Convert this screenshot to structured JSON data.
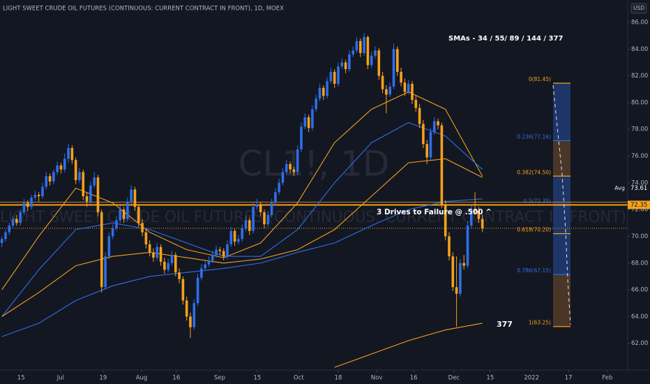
{
  "chart_data": {
    "type": "candlestick",
    "title": "LIGHT SWEET CRUDE OIL FUTURES (CONTINUOUS: CURRENT CONTRACT IN FRONT), 1D, MOEX",
    "currency": "USD",
    "watermark": {
      "symbol": "CL1!, 1D",
      "description": "LIGHT SWEET CRUDE OIL FUTURES (CONTINUOUS: CURRENT CONTRACT IN FRONT)"
    },
    "annotations": {
      "sma_list": "SMAs - 34 / 55/ 89 / 144 / 377",
      "setup": "3 Drives to Failure @ .500 ^",
      "sma_377": "377"
    },
    "up_color": "#2f6ee8",
    "down_color": "#f5a11c",
    "xlim": [
      -0.5,
      169.3
    ],
    "xticks": [
      {
        "value": 5.2,
        "label": "15"
      },
      {
        "value": 15.9,
        "label": "Jul"
      },
      {
        "value": 27.4,
        "label": "19"
      },
      {
        "value": 37.8,
        "label": "Aug"
      },
      {
        "value": 47.2,
        "label": "16"
      },
      {
        "value": 58.9,
        "label": "Sep"
      },
      {
        "value": 69.1,
        "label": "15"
      },
      {
        "value": 80.3,
        "label": "Oct"
      },
      {
        "value": 91.0,
        "label": "18"
      },
      {
        "value": 101.4,
        "label": "Nov"
      },
      {
        "value": 111.4,
        "label": "16"
      },
      {
        "value": 122.3,
        "label": "Dec"
      },
      {
        "value": 132.1,
        "label": "15"
      },
      {
        "value": 143.3,
        "label": "2022"
      },
      {
        "value": 153.3,
        "label": "17"
      },
      {
        "value": 163.8,
        "label": "Feb"
      }
    ],
    "ylim": [
      60,
      87.67
    ],
    "yticks": [
      {
        "value": 62,
        "label": "62.00"
      },
      {
        "value": 64,
        "label": "64.00"
      },
      {
        "value": 66,
        "label": "66.00"
      },
      {
        "value": 68,
        "label": "68.00"
      },
      {
        "value": 70,
        "label": "70.00"
      },
      {
        "value": 72,
        "label": "72.00"
      },
      {
        "value": 74,
        "label": "74.00"
      },
      {
        "value": 76,
        "label": "76.00"
      },
      {
        "value": 78,
        "label": "78.00"
      },
      {
        "value": 80,
        "label": "80.00"
      },
      {
        "value": 82,
        "label": "82.00"
      },
      {
        "value": 84,
        "label": "84.00"
      },
      {
        "value": 86,
        "label": "86.00"
      }
    ],
    "grid": false,
    "ohlc": [
      [
        69.5,
        70.0,
        69.2,
        69.8
      ],
      [
        69.8,
        70.5,
        69.6,
        70.3
      ],
      [
        70.3,
        71.0,
        70.1,
        70.8
      ],
      [
        70.8,
        71.5,
        70.6,
        71.3
      ],
      [
        71.3,
        71.6,
        70.8,
        71.0
      ],
      [
        71.0,
        72.0,
        70.8,
        71.8
      ],
      [
        71.8,
        72.8,
        71.6,
        72.5
      ],
      [
        72.5,
        72.7,
        71.9,
        72.2
      ],
      [
        72.2,
        73.1,
        72.0,
        72.9
      ],
      [
        72.9,
        73.4,
        72.7,
        73.1
      ],
      [
        73.1,
        73.3,
        72.6,
        73.0
      ],
      [
        73.0,
        74.0,
        72.8,
        73.7
      ],
      [
        73.7,
        74.8,
        73.5,
        74.5
      ],
      [
        74.5,
        74.7,
        73.8,
        74.1
      ],
      [
        74.1,
        75.0,
        73.9,
        74.8
      ],
      [
        74.8,
        75.6,
        74.6,
        75.3
      ],
      [
        75.3,
        75.5,
        74.7,
        75.0
      ],
      [
        75.0,
        76.2,
        74.8,
        75.8
      ],
      [
        75.8,
        76.9,
        75.5,
        76.6
      ],
      [
        76.6,
        76.8,
        75.4,
        75.7
      ],
      [
        75.7,
        75.9,
        73.9,
        74.2
      ],
      [
        74.2,
        75.1,
        74.0,
        74.8
      ],
      [
        74.8,
        75.0,
        72.7,
        73.0
      ],
      [
        73.0,
        73.3,
        72.2,
        72.6
      ],
      [
        72.6,
        74.1,
        72.4,
        73.8
      ],
      [
        73.8,
        74.8,
        73.6,
        74.4
      ],
      [
        74.4,
        74.6,
        71.5,
        71.8
      ],
      [
        71.8,
        72.0,
        65.8,
        66.2
      ],
      [
        66.2,
        68.8,
        66.0,
        68.5
      ],
      [
        68.5,
        70.3,
        68.3,
        70.0
      ],
      [
        70.0,
        70.9,
        69.8,
        70.6
      ],
      [
        70.6,
        71.5,
        70.4,
        71.2
      ],
      [
        71.2,
        72.3,
        71.0,
        72.0
      ],
      [
        72.0,
        72.2,
        71.0,
        71.3
      ],
      [
        71.3,
        72.9,
        71.1,
        72.6
      ],
      [
        72.6,
        73.8,
        72.4,
        73.5
      ],
      [
        73.5,
        73.7,
        71.9,
        72.2
      ],
      [
        72.2,
        72.4,
        70.7,
        71.0
      ],
      [
        71.0,
        71.3,
        70.0,
        70.3
      ],
      [
        70.3,
        70.6,
        69.1,
        69.4
      ],
      [
        69.4,
        69.7,
        68.5,
        68.8
      ],
      [
        68.8,
        69.1,
        68.1,
        68.4
      ],
      [
        68.4,
        69.5,
        68.2,
        69.2
      ],
      [
        69.2,
        69.4,
        67.8,
        68.1
      ],
      [
        68.1,
        68.4,
        67.2,
        67.5
      ],
      [
        67.5,
        68.3,
        67.3,
        68.0
      ],
      [
        68.0,
        68.9,
        67.8,
        68.6
      ],
      [
        68.6,
        68.8,
        67.0,
        67.3
      ],
      [
        67.3,
        67.6,
        66.5,
        66.8
      ],
      [
        66.8,
        67.0,
        64.9,
        65.2
      ],
      [
        65.2,
        65.5,
        63.7,
        64.0
      ],
      [
        64.0,
        64.3,
        62.4,
        63.2
      ],
      [
        63.2,
        65.3,
        63.0,
        65.0
      ],
      [
        65.0,
        67.2,
        64.8,
        66.9
      ],
      [
        66.9,
        67.9,
        66.7,
        67.6
      ],
      [
        67.6,
        68.2,
        67.4,
        67.9
      ],
      [
        67.9,
        68.5,
        67.7,
        68.2
      ],
      [
        68.2,
        68.9,
        68.0,
        68.6
      ],
      [
        68.6,
        69.3,
        68.4,
        69.0
      ],
      [
        69.0,
        69.2,
        68.6,
        68.9
      ],
      [
        68.9,
        69.1,
        68.2,
        68.5
      ],
      [
        68.5,
        69.7,
        68.3,
        69.4
      ],
      [
        69.4,
        70.7,
        69.2,
        70.4
      ],
      [
        70.4,
        70.6,
        69.3,
        69.6
      ],
      [
        69.6,
        70.1,
        69.4,
        69.8
      ],
      [
        69.8,
        70.9,
        69.6,
        70.6
      ],
      [
        70.6,
        71.5,
        70.4,
        71.2
      ],
      [
        71.2,
        71.4,
        70.1,
        70.4
      ],
      [
        70.4,
        72.5,
        70.2,
        72.2
      ],
      [
        72.2,
        72.8,
        72.0,
        72.4
      ],
      [
        72.4,
        72.6,
        71.5,
        71.8
      ],
      [
        71.8,
        72.0,
        70.6,
        70.9
      ],
      [
        70.9,
        71.9,
        70.7,
        71.6
      ],
      [
        71.6,
        72.8,
        71.4,
        72.5
      ],
      [
        72.5,
        73.6,
        72.3,
        73.3
      ],
      [
        73.3,
        74.3,
        73.1,
        74.0
      ],
      [
        74.0,
        75.1,
        73.8,
        74.8
      ],
      [
        74.8,
        75.7,
        74.6,
        75.4
      ],
      [
        75.4,
        75.6,
        74.7,
        75.0
      ],
      [
        75.0,
        75.2,
        74.5,
        74.8
      ],
      [
        74.8,
        76.8,
        74.6,
        76.5
      ],
      [
        76.5,
        78.5,
        76.3,
        78.2
      ],
      [
        78.2,
        79.2,
        78.0,
        78.9
      ],
      [
        78.9,
        79.1,
        77.8,
        78.1
      ],
      [
        78.1,
        79.8,
        77.9,
        79.5
      ],
      [
        79.5,
        80.6,
        79.3,
        80.3
      ],
      [
        80.3,
        81.4,
        80.1,
        81.1
      ],
      [
        81.1,
        81.3,
        80.2,
        80.5
      ],
      [
        80.5,
        81.9,
        80.3,
        81.6
      ],
      [
        81.6,
        82.6,
        81.4,
        82.3
      ],
      [
        82.3,
        82.5,
        81.1,
        81.4
      ],
      [
        81.4,
        83.0,
        81.2,
        82.7
      ],
      [
        82.7,
        83.3,
        82.5,
        83.0
      ],
      [
        83.0,
        83.2,
        82.2,
        82.5
      ],
      [
        82.5,
        83.9,
        82.3,
        83.6
      ],
      [
        83.6,
        84.2,
        83.4,
        83.9
      ],
      [
        83.9,
        84.9,
        83.7,
        84.6
      ],
      [
        84.6,
        84.8,
        83.4,
        83.7
      ],
      [
        83.7,
        85.2,
        83.5,
        84.9
      ],
      [
        84.9,
        85.0,
        82.5,
        82.8
      ],
      [
        82.8,
        83.8,
        82.6,
        83.5
      ],
      [
        83.5,
        84.2,
        83.3,
        83.9
      ],
      [
        83.9,
        84.1,
        81.7,
        82.0
      ],
      [
        82.0,
        82.3,
        80.7,
        81.0
      ],
      [
        81.0,
        81.3,
        79.2,
        80.6
      ],
      [
        80.6,
        81.5,
        80.4,
        81.2
      ],
      [
        81.2,
        84.4,
        81.0,
        84.0
      ],
      [
        84.0,
        84.2,
        82.0,
        82.3
      ],
      [
        82.3,
        82.6,
        81.2,
        81.5
      ],
      [
        81.5,
        81.8,
        80.5,
        80.8
      ],
      [
        80.8,
        81.7,
        80.6,
        81.4
      ],
      [
        81.4,
        81.6,
        79.9,
        80.2
      ],
      [
        80.2,
        80.5,
        79.3,
        79.6
      ],
      [
        79.6,
        79.9,
        78.1,
        78.4
      ],
      [
        78.4,
        78.7,
        76.6,
        76.9
      ],
      [
        76.9,
        77.2,
        75.4,
        75.9
      ],
      [
        75.9,
        78.1,
        75.7,
        77.8
      ],
      [
        77.8,
        78.9,
        77.6,
        78.6
      ],
      [
        78.6,
        78.8,
        78.0,
        78.3
      ],
      [
        78.3,
        78.5,
        72.1,
        72.4
      ],
      [
        72.4,
        72.7,
        69.7,
        70.0
      ],
      [
        70.0,
        70.3,
        68.2,
        68.5
      ],
      [
        68.5,
        68.8,
        65.9,
        66.2
      ],
      [
        66.2,
        68.5,
        63.25,
        65.7
      ],
      [
        65.7,
        68.3,
        65.5,
        68.0
      ],
      [
        68.0,
        68.6,
        67.5,
        67.8
      ],
      [
        67.8,
        71.1,
        67.6,
        70.8
      ],
      [
        70.8,
        72.3,
        70.6,
        72.0
      ],
      [
        72.0,
        73.3,
        71.7,
        71.9
      ],
      [
        71.9,
        72.2,
        71.0,
        71.3
      ],
      [
        71.3,
        71.6,
        70.3,
        70.6
      ]
    ],
    "sma": {
      "x": [
        0,
        10,
        20,
        30,
        40,
        50,
        60,
        70,
        80,
        90,
        100,
        110,
        120,
        130
      ],
      "series": [
        {
          "color": "#f5a11c",
          "values": [
            66,
            70,
            73.6,
            72.5,
            70.3,
            69,
            68.4,
            69.5,
            72.5,
            77,
            79.5,
            80.8,
            79.5,
            74.5
          ]
        },
        {
          "color": "#2f6ee8",
          "values": [
            64,
            67.5,
            70.5,
            71,
            70.5,
            69.5,
            68.5,
            68.5,
            70.5,
            74,
            77,
            78.5,
            77.5,
            75
          ]
        },
        {
          "color": "#f5a11c",
          "values": [
            64,
            65.8,
            67.8,
            68.5,
            68.8,
            68.4,
            68,
            68.3,
            69,
            70.5,
            73,
            75.5,
            75.8,
            74.4
          ]
        },
        {
          "color": "#2f6ee8",
          "values": [
            62.5,
            63.5,
            65.2,
            66.3,
            67,
            67.3,
            67.6,
            68,
            68.8,
            69.5,
            70.8,
            72,
            72.6,
            72.8
          ]
        },
        {
          "color": "#f5a11c",
          "values": [
            null,
            null,
            null,
            null,
            null,
            null,
            null,
            null,
            null,
            60.2,
            61.2,
            62.2,
            63.0,
            63.5
          ]
        }
      ]
    },
    "hline": {
      "value": 72.35,
      "color": "#f5a11c"
    },
    "avg": {
      "label": "Avg",
      "value": 73.61
    },
    "fib": {
      "levels": [
        {
          "value": 81.45,
          "label": "0(81.45)",
          "color": "#f5a11c"
        },
        {
          "value": 77.16,
          "label": "0.236(77.16)",
          "color": "#2f6ee8"
        },
        {
          "value": 74.5,
          "label": "0.382(74.50)",
          "color": "#f5a11c"
        },
        {
          "value": 72.35,
          "label": "0.5(72.35)",
          "color": "#2f6ee8"
        },
        {
          "value": 70.2,
          "label": "0.618(70.20)",
          "color": "#f5a11c"
        },
        {
          "value": 67.15,
          "label": "0.786(67.15)",
          "color": "#2f6ee8"
        },
        {
          "value": 63.25,
          "label": "1(63.25)",
          "color": "#f5a11c"
        }
      ],
      "band_colors": [
        "#1d3567",
        "#4a3627",
        "#1d3567",
        "#1d3567",
        "#1d3567",
        "#4a3627"
      ]
    }
  }
}
